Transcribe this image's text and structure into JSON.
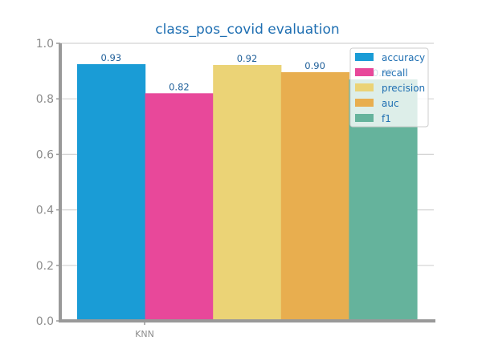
{
  "chart_data": {
    "type": "bar",
    "title": "class_pos_covid evaluation",
    "xlabel": "",
    "ylabel": "",
    "categories": [
      "KNN"
    ],
    "series": [
      {
        "name": "accuracy",
        "values": [
          0.925
        ],
        "label": "0.93",
        "color": "#1a9cd6"
      },
      {
        "name": "recall",
        "values": [
          0.82
        ],
        "label": "0.82",
        "color": "#e8489a"
      },
      {
        "name": "precision",
        "values": [
          0.922
        ],
        "label": "0.92",
        "color": "#ebd376"
      },
      {
        "name": "auc",
        "values": [
          0.896
        ],
        "label": "0.90",
        "color": "#e8ae4f"
      },
      {
        "name": "f1",
        "values": [
          0.87
        ],
        "label": "0.87",
        "color": "#65b39c"
      }
    ],
    "ylim": [
      0,
      1.0
    ],
    "yticks": [
      "0.0",
      "0.2",
      "0.4",
      "0.6",
      "0.8",
      "1.0"
    ],
    "grid": true,
    "legend_position": "top-right"
  }
}
